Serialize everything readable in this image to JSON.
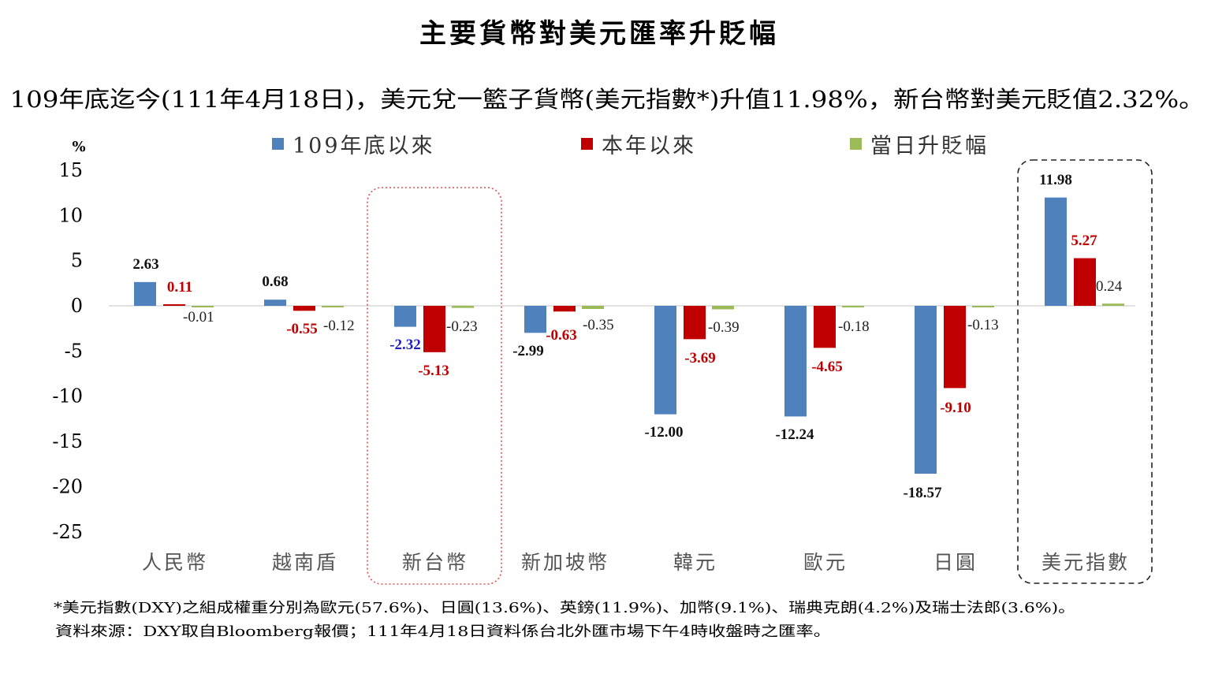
{
  "chart_data": {
    "type": "bar",
    "title": "主要貨幣對美元匯率升貶幅",
    "subtitle": "109年底迄今(111年4月18日)，美元兌一籃子貨幣(美元指數*)升值11.98%，新台幣對美元貶值2.32%。",
    "ylabel": "%",
    "ylim": [
      -25,
      15
    ],
    "yticks": [
      15,
      10,
      5,
      0,
      -5,
      -10,
      -15,
      -20,
      -25
    ],
    "legend_position": "top",
    "categories": [
      "人民幣",
      "越南盾",
      "新台幣",
      "新加坡幣",
      "韓元",
      "歐元",
      "日圓",
      "美元指數"
    ],
    "series": [
      {
        "name": "109年底以來",
        "color": "#4f81bd",
        "values": [
          2.63,
          0.68,
          -2.32,
          -2.99,
          -12.0,
          -12.24,
          -18.57,
          11.98
        ]
      },
      {
        "name": "本年以來",
        "color": "#c00000",
        "values": [
          0.11,
          -0.55,
          -5.13,
          -0.63,
          -3.69,
          -4.65,
          -9.1,
          5.27
        ]
      },
      {
        "name": "當日升貶幅",
        "color": "#9bbb59",
        "values": [
          -0.01,
          -0.12,
          -0.23,
          -0.35,
          -0.39,
          -0.18,
          -0.13,
          0.24
        ]
      }
    ],
    "highlights": [
      {
        "category": "新台幣",
        "style": "dotted",
        "color": "#e05050"
      },
      {
        "category": "美元指數",
        "style": "dashed",
        "color": "#222222"
      }
    ],
    "footnotes": [
      "*美元指數(DXY)之組成權重分別為歐元(57.6%)、日圓(13.6%)、英鎊(11.9%)、加幣(9.1%)、瑞典克朗(4.2%)及瑞士法郎(3.6%)。",
      "資料來源：DXY取自Bloomberg報價；111年4月18日資料係台北外匯市場下午4時收盤時之匯率。"
    ]
  }
}
